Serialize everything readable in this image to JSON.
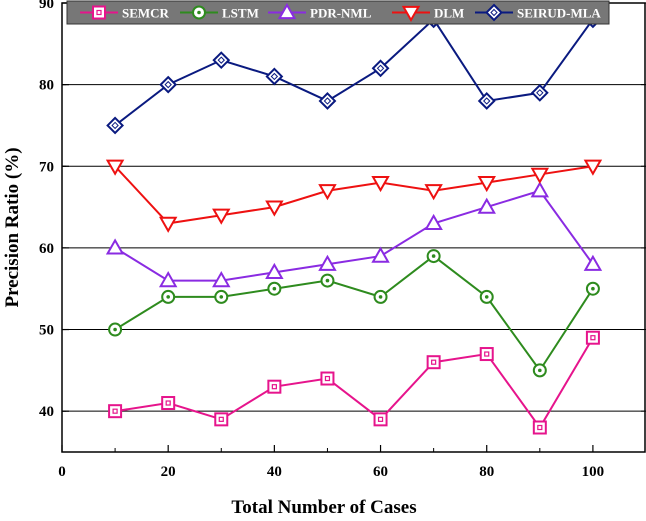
{
  "chart_data": {
    "type": "line",
    "title": "",
    "xlabel": "Total Number of Cases",
    "ylabel": "Precision Ratio (%)",
    "xlim": [
      0,
      110
    ],
    "ylim": [
      35,
      90
    ],
    "xticks": [
      0,
      20,
      40,
      60,
      80,
      100
    ],
    "yticks": [
      40,
      50,
      60,
      70,
      80,
      90
    ],
    "grid": "horizontal",
    "legend_position": "top",
    "legend_background": "#777777",
    "x": [
      10,
      20,
      30,
      40,
      50,
      60,
      70,
      80,
      90,
      100
    ],
    "series": [
      {
        "name": "SEMCR",
        "color": "#e6148c",
        "marker": "square",
        "values": [
          40,
          41,
          39,
          43,
          44,
          39,
          46,
          47,
          38,
          49
        ]
      },
      {
        "name": "LSTM",
        "color": "#2e8b1e",
        "marker": "circle",
        "values": [
          50,
          54,
          54,
          55,
          56,
          54,
          59,
          54,
          45,
          55
        ]
      },
      {
        "name": "PDR-NML",
        "color": "#8a2be2",
        "marker": "triangle-up",
        "values": [
          60,
          56,
          56,
          57,
          58,
          59,
          63,
          65,
          67,
          58
        ]
      },
      {
        "name": "DLM",
        "color": "#ee1111",
        "marker": "triangle-down",
        "values": [
          70,
          63,
          64,
          65,
          67,
          68,
          67,
          68,
          69,
          70
        ]
      },
      {
        "name": "SEIRUD-MLA",
        "color": "#0a1a80",
        "marker": "diamond",
        "values": [
          75,
          80,
          83,
          81,
          78,
          82,
          88,
          78,
          79,
          88
        ]
      }
    ]
  }
}
